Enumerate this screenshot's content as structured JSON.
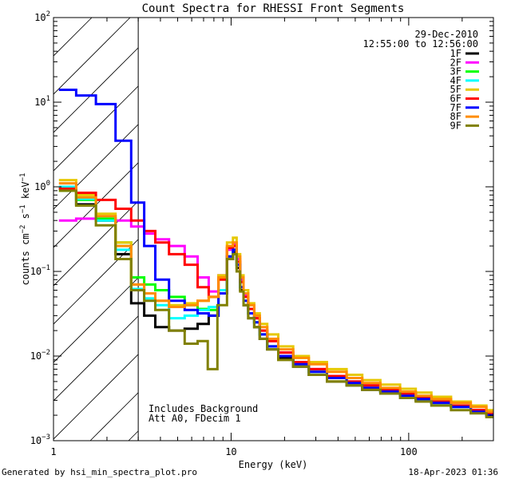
{
  "chart_data": {
    "type": "line",
    "title": "Count Spectra for RHESSI Front Segments",
    "xlabel": "Energy (keV)",
    "ylabel_parts": {
      "base": "counts cm",
      "exp1": "−2",
      "mid": " s",
      "exp2": "−1",
      "tail": " keV",
      "exp3": "−1"
    },
    "xscale": "log",
    "yscale": "log",
    "xlim": [
      1,
      300
    ],
    "ylim": [
      0.001,
      100
    ],
    "x_ticks": [
      {
        "value": 1,
        "label": "1"
      },
      {
        "value": 10,
        "label": "10"
      },
      {
        "value": 100,
        "label": "100"
      }
    ],
    "y_ticks": [
      {
        "value": 0.001,
        "base": "10",
        "exp": "−3"
      },
      {
        "value": 0.01,
        "base": "10",
        "exp": "−2"
      },
      {
        "value": 0.1,
        "base": "10",
        "exp": "−1"
      },
      {
        "value": 1,
        "base": "10",
        "exp": "0"
      },
      {
        "value": 10,
        "base": "10",
        "exp": "1"
      },
      {
        "value": 100,
        "base": "10",
        "exp": "2"
      }
    ],
    "hatched_region": {
      "x_start": 1,
      "x_end": 3
    },
    "date": "29-Dec-2010",
    "time_range": "12:55:00 to 12:56:00",
    "annotations": [
      "Includes Background",
      "Att A0, FDecim 1"
    ],
    "legend_position": "top-right",
    "series": [
      {
        "name": "1F",
        "color": "#000000",
        "x": [
          1.2,
          1.5,
          2.0,
          2.5,
          3.0,
          3.5,
          4.0,
          5.0,
          6.0,
          7.0,
          8.0,
          9.0,
          10.0,
          10.5,
          11.0,
          11.5,
          12.0,
          13.0,
          14.0,
          15.0,
          17.0,
          20.0,
          25.0,
          30.0,
          40.0,
          50.0,
          60.0,
          80.0,
          100.0,
          120.0,
          150.0,
          200.0,
          250.0,
          300.0
        ],
        "values": [
          0.95,
          0.62,
          0.4,
          0.16,
          0.042,
          0.03,
          0.022,
          0.02,
          0.021,
          0.024,
          0.03,
          0.055,
          0.14,
          0.17,
          0.11,
          0.06,
          0.04,
          0.028,
          0.022,
          0.016,
          0.012,
          0.0095,
          0.0075,
          0.006,
          0.005,
          0.0045,
          0.004,
          0.0038,
          0.0035,
          0.003,
          0.0028,
          0.0025,
          0.0022,
          0.002
        ]
      },
      {
        "name": "2F",
        "color": "#ff00ff",
        "x": [
          1.2,
          1.5,
          2.0,
          2.5,
          3.0,
          3.5,
          4.0,
          5.0,
          6.0,
          7.0,
          8.0,
          9.0,
          10.0,
          10.5,
          11.0,
          11.5,
          12.0,
          13.0,
          14.0,
          15.0,
          17.0,
          20.0,
          25.0,
          30.0,
          40.0,
          50.0,
          60.0,
          80.0,
          100.0,
          120.0,
          150.0,
          200.0,
          250.0,
          300.0
        ],
        "values": [
          0.4,
          0.42,
          0.42,
          0.4,
          0.34,
          0.28,
          0.24,
          0.2,
          0.15,
          0.085,
          0.058,
          0.09,
          0.18,
          0.21,
          0.14,
          0.08,
          0.052,
          0.036,
          0.028,
          0.02,
          0.015,
          0.011,
          0.0085,
          0.007,
          0.0058,
          0.005,
          0.0045,
          0.004,
          0.0036,
          0.0032,
          0.0029,
          0.0026,
          0.0023,
          0.0021
        ]
      },
      {
        "name": "3F",
        "color": "#00ff00",
        "x": [
          1.2,
          1.5,
          2.0,
          2.5,
          3.0,
          3.5,
          4.0,
          5.0,
          6.0,
          7.0,
          8.0,
          9.0,
          10.0,
          10.5,
          11.0,
          11.5,
          12.0,
          13.0,
          14.0,
          15.0,
          17.0,
          20.0,
          25.0,
          30.0,
          40.0,
          50.0,
          60.0,
          80.0,
          100.0,
          120.0,
          150.0,
          200.0,
          250.0,
          300.0
        ],
        "values": [
          0.9,
          0.7,
          0.42,
          0.22,
          0.085,
          0.07,
          0.06,
          0.05,
          0.04,
          0.036,
          0.035,
          0.06,
          0.15,
          0.18,
          0.12,
          0.065,
          0.045,
          0.032,
          0.025,
          0.018,
          0.013,
          0.01,
          0.008,
          0.0065,
          0.0055,
          0.0048,
          0.0042,
          0.0038,
          0.0034,
          0.0031,
          0.0028,
          0.0025,
          0.0022,
          0.002
        ]
      },
      {
        "name": "4F",
        "color": "#00ffff",
        "x": [
          1.2,
          1.5,
          2.0,
          2.5,
          3.0,
          3.5,
          4.0,
          5.0,
          6.0,
          7.0,
          8.0,
          9.0,
          10.0,
          10.5,
          11.0,
          11.5,
          12.0,
          13.0,
          14.0,
          15.0,
          17.0,
          20.0,
          25.0,
          30.0,
          40.0,
          50.0,
          60.0,
          80.0,
          100.0,
          120.0,
          150.0,
          200.0,
          250.0,
          300.0
        ],
        "values": [
          1.0,
          0.72,
          0.4,
          0.18,
          0.062,
          0.048,
          0.04,
          0.028,
          0.03,
          0.035,
          0.038,
          0.06,
          0.15,
          0.18,
          0.12,
          0.065,
          0.045,
          0.032,
          0.025,
          0.018,
          0.013,
          0.01,
          0.008,
          0.0065,
          0.0055,
          0.0048,
          0.0042,
          0.0038,
          0.0034,
          0.0031,
          0.0028,
          0.0025,
          0.0022,
          0.002
        ]
      },
      {
        "name": "5F",
        "color": "#e6c800",
        "x": [
          1.2,
          1.5,
          2.0,
          2.5,
          3.0,
          3.5,
          4.0,
          5.0,
          6.0,
          7.0,
          8.0,
          9.0,
          10.0,
          10.5,
          11.0,
          11.5,
          12.0,
          13.0,
          14.0,
          15.0,
          17.0,
          20.0,
          25.0,
          30.0,
          40.0,
          50.0,
          60.0,
          80.0,
          100.0,
          120.0,
          150.0,
          200.0,
          250.0,
          300.0
        ],
        "values": [
          1.2,
          0.8,
          0.48,
          0.22,
          0.07,
          0.055,
          0.045,
          0.04,
          0.042,
          0.045,
          0.05,
          0.09,
          0.22,
          0.25,
          0.16,
          0.09,
          0.06,
          0.042,
          0.032,
          0.024,
          0.018,
          0.013,
          0.01,
          0.0085,
          0.007,
          0.006,
          0.0052,
          0.0046,
          0.0041,
          0.0037,
          0.0033,
          0.0029,
          0.0026,
          0.0023
        ]
      },
      {
        "name": "6F",
        "color": "#ff0000",
        "x": [
          1.2,
          1.5,
          2.0,
          2.5,
          3.0,
          3.5,
          4.0,
          5.0,
          6.0,
          7.0,
          8.0,
          9.0,
          10.0,
          10.5,
          11.0,
          11.5,
          12.0,
          13.0,
          14.0,
          15.0,
          17.0,
          20.0,
          25.0,
          30.0,
          40.0,
          50.0,
          60.0,
          80.0,
          100.0,
          120.0,
          150.0,
          200.0,
          250.0,
          300.0
        ],
        "values": [
          0.95,
          0.85,
          0.7,
          0.55,
          0.4,
          0.3,
          0.22,
          0.16,
          0.12,
          0.065,
          0.05,
          0.08,
          0.19,
          0.2,
          0.13,
          0.075,
          0.05,
          0.036,
          0.028,
          0.02,
          0.015,
          0.011,
          0.0085,
          0.007,
          0.0058,
          0.005,
          0.0045,
          0.004,
          0.0036,
          0.0032,
          0.0029,
          0.0026,
          0.0023,
          0.0021
        ]
      },
      {
        "name": "7F",
        "color": "#0000ff",
        "x": [
          1.2,
          1.5,
          2.0,
          2.5,
          3.0,
          3.5,
          4.0,
          5.0,
          6.0,
          7.0,
          8.0,
          9.0,
          10.0,
          10.5,
          11.0,
          11.5,
          12.0,
          13.0,
          14.0,
          15.0,
          17.0,
          20.0,
          25.0,
          30.0,
          40.0,
          50.0,
          60.0,
          80.0,
          100.0,
          120.0,
          150.0,
          200.0,
          250.0,
          300.0
        ],
        "values": [
          14.0,
          12.0,
          9.5,
          3.5,
          0.65,
          0.2,
          0.08,
          0.045,
          0.035,
          0.032,
          0.03,
          0.055,
          0.15,
          0.18,
          0.12,
          0.065,
          0.045,
          0.032,
          0.025,
          0.018,
          0.013,
          0.01,
          0.008,
          0.0065,
          0.0055,
          0.0048,
          0.0042,
          0.0038,
          0.0034,
          0.0031,
          0.0028,
          0.0025,
          0.0022,
          0.002
        ]
      },
      {
        "name": "8F",
        "color": "#ff8c00",
        "x": [
          1.2,
          1.5,
          2.0,
          2.5,
          3.0,
          3.5,
          4.0,
          5.0,
          6.0,
          7.0,
          8.0,
          9.0,
          10.0,
          10.5,
          11.0,
          11.5,
          12.0,
          13.0,
          14.0,
          15.0,
          17.0,
          20.0,
          25.0,
          30.0,
          40.0,
          50.0,
          60.0,
          80.0,
          100.0,
          120.0,
          150.0,
          200.0,
          250.0,
          300.0
        ],
        "values": [
          1.1,
          0.75,
          0.45,
          0.2,
          0.07,
          0.055,
          0.045,
          0.038,
          0.04,
          0.045,
          0.05,
          0.085,
          0.2,
          0.22,
          0.15,
          0.085,
          0.055,
          0.04,
          0.03,
          0.022,
          0.016,
          0.012,
          0.0095,
          0.008,
          0.0065,
          0.0055,
          0.0048,
          0.0042,
          0.0038,
          0.0034,
          0.0031,
          0.0028,
          0.0025,
          0.0022
        ]
      },
      {
        "name": "9F",
        "color": "#808000",
        "x": [
          1.2,
          1.5,
          2.0,
          2.5,
          3.0,
          3.5,
          4.0,
          5.0,
          6.0,
          7.0,
          7.8,
          9.0,
          10.0,
          10.5,
          11.0,
          11.5,
          12.0,
          13.0,
          14.0,
          15.0,
          17.0,
          20.0,
          25.0,
          30.0,
          40.0,
          50.0,
          60.0,
          80.0,
          100.0,
          120.0,
          150.0,
          200.0,
          250.0,
          300.0
        ],
        "values": [
          0.9,
          0.6,
          0.35,
          0.14,
          0.06,
          0.045,
          0.035,
          0.02,
          0.014,
          0.015,
          0.007,
          0.04,
          0.14,
          0.16,
          0.1,
          0.058,
          0.04,
          0.028,
          0.022,
          0.016,
          0.012,
          0.009,
          0.0075,
          0.006,
          0.005,
          0.0045,
          0.004,
          0.0036,
          0.0032,
          0.0029,
          0.0026,
          0.0023,
          0.0021,
          0.0019
        ]
      }
    ]
  },
  "footer": {
    "generated_by": "Generated by hsi_min_spectra_plot.pro",
    "timestamp": "18-Apr-2023 01:36"
  }
}
